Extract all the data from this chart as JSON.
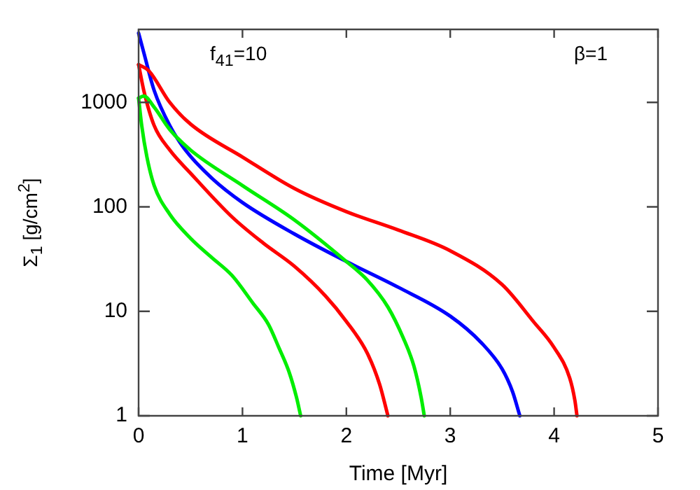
{
  "chart_data": {
    "type": "line",
    "xlabel": "Time [Myr]",
    "ylabel": "Σ$_{1}$ [g/cm$^{2}$]",
    "annotations": [
      "f$_{41}$=10",
      "β=1"
    ],
    "log": "y",
    "grid": false,
    "legend": false,
    "marker": "none",
    "line_style": "solid",
    "xlim": [
      0,
      5
    ],
    "xticks": [
      0,
      1,
      2,
      3,
      4,
      5
    ],
    "ylim": [
      1,
      5000
    ],
    "yticks": [
      1,
      10,
      100,
      1000
    ],
    "series": [
      {
        "color": "#ff0000",
        "x": [
          0,
          0.1,
          0.3,
          0.5,
          1.0,
          1.5,
          2.0,
          2.5,
          3.0,
          3.5,
          3.8,
          4.0,
          4.15,
          4.2,
          4.22
        ],
        "values": [
          2300,
          2000,
          1000,
          620,
          300,
          150,
          90,
          60,
          38,
          18,
          8,
          4.5,
          2.3,
          1.4,
          1
        ]
      },
      {
        "color": "#00ee00",
        "x": [
          0,
          0.05,
          0.15,
          0.3,
          0.5,
          1.0,
          1.5,
          2.0,
          2.2,
          2.4,
          2.55,
          2.65,
          2.72,
          2.75
        ],
        "values": [
          1100,
          1150,
          900,
          550,
          350,
          160,
          75,
          30,
          20,
          11,
          5.5,
          3,
          1.5,
          1
        ]
      },
      {
        "color": "#0000ff",
        "x": [
          0,
          0.05,
          0.15,
          0.3,
          0.45,
          0.7,
          1.0,
          1.5,
          2.0,
          2.5,
          3.0,
          3.3,
          3.5,
          3.6,
          3.67
        ],
        "values": [
          4600,
          3000,
          1300,
          600,
          350,
          190,
          110,
          55,
          30,
          17,
          9,
          5,
          2.8,
          1.7,
          1
        ]
      },
      {
        "color": "#ff0000",
        "x": [
          0,
          0.05,
          0.15,
          0.3,
          0.5,
          0.9,
          1.2,
          1.5,
          1.8,
          2.0,
          2.2,
          2.32,
          2.4
        ],
        "values": [
          2300,
          1300,
          600,
          350,
          210,
          80,
          45,
          27,
          14,
          8,
          4,
          2,
          1
        ]
      },
      {
        "color": "#00ee00",
        "x": [
          0,
          0.03,
          0.08,
          0.15,
          0.3,
          0.5,
          0.7,
          0.9,
          1.1,
          1.25,
          1.35,
          1.45,
          1.52,
          1.56
        ],
        "values": [
          1100,
          600,
          300,
          160,
          85,
          50,
          33,
          22,
          12,
          7.5,
          4.5,
          2.6,
          1.5,
          1
        ]
      }
    ]
  }
}
